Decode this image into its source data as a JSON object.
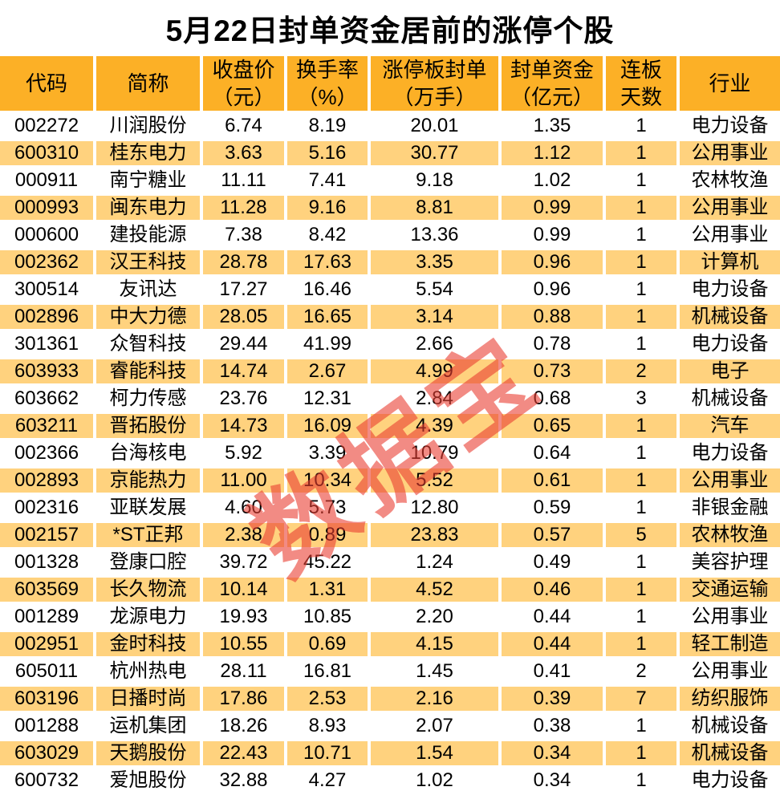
{
  "title": "5月22日封单资金居前的涨停个股",
  "watermark": "数据宝",
  "colors": {
    "header_bg": "#fcb026",
    "row_alt_bg": "#ffd27e",
    "row_bg": "#ffffff",
    "text": "#000000",
    "watermark": "#ea3e32"
  },
  "display_headers": [
    "代码",
    "简称",
    "收盘价\n（元）",
    "换手率\n（%）",
    "涨停板封单\n（万手）",
    "封单资金\n（亿元）",
    "连板\n天数",
    "行业"
  ],
  "chart_data": {
    "type": "table",
    "title": "5月22日封单资金居前的涨停个股",
    "columns": [
      "代码",
      "简称",
      "收盘价（元）",
      "换手率（%）",
      "涨停板封单（万手）",
      "封单资金（亿元）",
      "连板天数",
      "行业"
    ],
    "rows": [
      [
        "002272",
        "川润股份",
        "6.74",
        "8.19",
        "20.01",
        "1.35",
        "1",
        "电力设备"
      ],
      [
        "600310",
        "桂东电力",
        "3.63",
        "5.16",
        "30.77",
        "1.12",
        "1",
        "公用事业"
      ],
      [
        "000911",
        "南宁糖业",
        "11.11",
        "7.41",
        "9.18",
        "1.02",
        "1",
        "农林牧渔"
      ],
      [
        "000993",
        "闽东电力",
        "11.28",
        "9.16",
        "8.81",
        "0.99",
        "1",
        "公用事业"
      ],
      [
        "000600",
        "建投能源",
        "7.38",
        "8.42",
        "13.36",
        "0.99",
        "1",
        "公用事业"
      ],
      [
        "002362",
        "汉王科技",
        "28.78",
        "17.63",
        "3.35",
        "0.96",
        "1",
        "计算机"
      ],
      [
        "300514",
        "友讯达",
        "17.27",
        "16.46",
        "5.54",
        "0.96",
        "1",
        "电力设备"
      ],
      [
        "002896",
        "中大力德",
        "28.05",
        "16.65",
        "3.14",
        "0.88",
        "1",
        "机械设备"
      ],
      [
        "301361",
        "众智科技",
        "29.44",
        "41.99",
        "2.66",
        "0.78",
        "1",
        "电力设备"
      ],
      [
        "603933",
        "睿能科技",
        "14.74",
        "2.67",
        "4.99",
        "0.73",
        "2",
        "电子"
      ],
      [
        "603662",
        "柯力传感",
        "23.76",
        "12.31",
        "2.84",
        "0.68",
        "3",
        "机械设备"
      ],
      [
        "603211",
        "晋拓股份",
        "14.73",
        "16.09",
        "4.39",
        "0.65",
        "1",
        "汽车"
      ],
      [
        "002366",
        "台海核电",
        "5.92",
        "3.39",
        "10.79",
        "0.64",
        "1",
        "电力设备"
      ],
      [
        "002893",
        "京能热力",
        "11.00",
        "10.34",
        "5.52",
        "0.61",
        "1",
        "公用事业"
      ],
      [
        "002316",
        "亚联发展",
        "4.60",
        "5.73",
        "12.80",
        "0.59",
        "1",
        "非银金融"
      ],
      [
        "002157",
        "*ST正邦",
        "2.38",
        "0.89",
        "23.83",
        "0.57",
        "5",
        "农林牧渔"
      ],
      [
        "001328",
        "登康口腔",
        "39.72",
        "45.22",
        "1.24",
        "0.49",
        "1",
        "美容护理"
      ],
      [
        "603569",
        "长久物流",
        "10.14",
        "1.31",
        "4.52",
        "0.46",
        "1",
        "交通运输"
      ],
      [
        "001289",
        "龙源电力",
        "19.93",
        "10.85",
        "2.20",
        "0.44",
        "1",
        "公用事业"
      ],
      [
        "002951",
        "金时科技",
        "10.55",
        "0.69",
        "4.15",
        "0.44",
        "1",
        "轻工制造"
      ],
      [
        "605011",
        "杭州热电",
        "28.11",
        "16.81",
        "1.45",
        "0.41",
        "2",
        "公用事业"
      ],
      [
        "603196",
        "日播时尚",
        "17.86",
        "2.53",
        "2.16",
        "0.39",
        "7",
        "纺织服饰"
      ],
      [
        "001288",
        "运机集团",
        "18.26",
        "8.93",
        "2.07",
        "0.38",
        "1",
        "机械设备"
      ],
      [
        "603029",
        "天鹅股份",
        "22.43",
        "10.71",
        "1.54",
        "0.34",
        "1",
        "机械设备"
      ],
      [
        "600732",
        "爱旭股份",
        "32.88",
        "4.27",
        "1.02",
        "0.34",
        "1",
        "电力设备"
      ]
    ]
  }
}
